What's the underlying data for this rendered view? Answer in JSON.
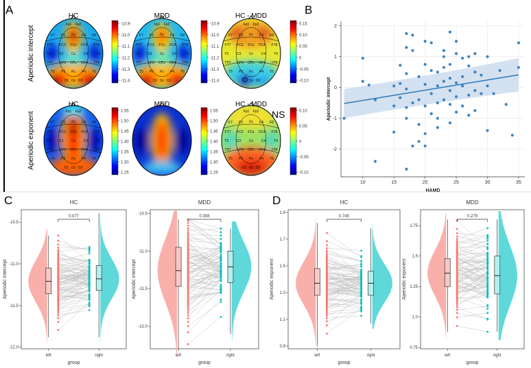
{
  "panels": {
    "A": {
      "label": "A",
      "col_titles": [
        "HC",
        "MDD",
        "HC - MDD"
      ],
      "row_labels": [
        "Aperiodic intercept",
        "Aperiodic exponent"
      ],
      "ns": "NS",
      "electrodes": [
        "Fp1",
        "Fp2",
        "F7",
        "F3",
        "Fz",
        "F4",
        "F8",
        "FC3",
        "FCz",
        "FC4",
        "T3",
        "C3",
        "Cz",
        "C4",
        "T4",
        "CP3",
        "CPz",
        "CP4",
        "T5",
        "P3",
        "Pz",
        "P4",
        "T6",
        "O1",
        "Oz",
        "O2",
        "FT7",
        "FT8",
        "TP7",
        "TP8"
      ],
      "colorbars": [
        {
          "ticks": [
            "-10.9",
            "-11.0",
            "-11.1",
            "-11.2",
            "-11.3",
            "-11.4"
          ]
        },
        {
          "ticks": [
            "-10.9",
            "-11.0",
            "-11.1",
            "-11.2",
            "-11.3",
            "-11.4"
          ]
        },
        {
          "ticks": [
            "0.15",
            "0.10",
            "0.05",
            "0",
            "-0.05",
            "-0.10"
          ]
        },
        {
          "ticks": [
            "1.55",
            "1.50",
            "1.45",
            "1.40",
            "1.35",
            "1.30",
            "1.25"
          ]
        },
        {
          "ticks": [
            "1.55",
            "1.50",
            "1.45",
            "1.40",
            "1.35",
            "1.30",
            "1.25"
          ]
        },
        {
          "ticks": [
            "0.10",
            "0.05",
            "0",
            "-0.05",
            "-0.10"
          ]
        }
      ]
    },
    "B": {
      "label": "B"
    },
    "C": {
      "label": "C"
    },
    "D": {
      "label": "D"
    }
  },
  "colors": {
    "left": "#f8766d",
    "right": "#00bfc4",
    "scatter": "#3b84c4",
    "fit": "#2b78b8",
    "ci": "#c9daec",
    "left_fill": "#f9b0ab",
    "right_fill": "#5fd8da"
  },
  "chart_data": [
    {
      "type": "scatter",
      "panel": "B",
      "xlabel": "HAMD",
      "ylabel": "Aperiodic intercept",
      "xticks": [
        10,
        15,
        20,
        25,
        30,
        35
      ],
      "yticks": [
        2,
        1,
        0,
        -1,
        -2
      ],
      "xlim": [
        6.5,
        36
      ],
      "ylim": [
        -2.9,
        2.15
      ],
      "fit": {
        "x": [
          7,
          35
        ],
        "y": [
          -0.52,
          0.41
        ],
        "ci_upper_at_ends": [
          -0.05,
          0.95
        ],
        "ci_lower_at_ends": [
          -1.0,
          -0.13
        ]
      },
      "points": [
        [
          7,
          -1.0
        ],
        [
          10,
          0.95
        ],
        [
          10,
          0.2
        ],
        [
          11,
          0.08
        ],
        [
          12,
          -0.4
        ],
        [
          12,
          -2.4
        ],
        [
          15,
          0.05
        ],
        [
          15,
          -0.6
        ],
        [
          15,
          -1.45
        ],
        [
          16,
          0.72
        ],
        [
          16,
          0.13
        ],
        [
          16,
          -0.33
        ],
        [
          17,
          1.3
        ],
        [
          17,
          1.75
        ],
        [
          17,
          0.45
        ],
        [
          17,
          -0.05
        ],
        [
          17,
          -0.65
        ],
        [
          17,
          -1.0
        ],
        [
          17,
          -2.65
        ],
        [
          18,
          1.7
        ],
        [
          18,
          1.2
        ],
        [
          18,
          -0.5
        ],
        [
          18,
          -1.9
        ],
        [
          19,
          -0.4
        ],
        [
          19,
          -1.2
        ],
        [
          19,
          -1.75
        ],
        [
          19,
          0.35
        ],
        [
          20,
          1.5
        ],
        [
          20,
          0.1
        ],
        [
          20,
          -0.6
        ],
        [
          20,
          -1.5
        ],
        [
          20,
          -1.9
        ],
        [
          20,
          0.75
        ],
        [
          21,
          1.45
        ],
        [
          21,
          -0.2
        ],
        [
          21,
          -0.85
        ],
        [
          21,
          0.55
        ],
        [
          22,
          0.5
        ],
        [
          22,
          0.05
        ],
        [
          22,
          -0.5
        ],
        [
          22,
          -1.0
        ],
        [
          22,
          -1.3
        ],
        [
          23,
          1.2
        ],
        [
          23,
          0.2
        ],
        [
          23,
          -0.4
        ],
        [
          23,
          1.0
        ],
        [
          23,
          0.65
        ],
        [
          24,
          1.8
        ],
        [
          24,
          0.75
        ],
        [
          24,
          0.3
        ],
        [
          24,
          -0.1
        ],
        [
          24,
          -0.55
        ],
        [
          24,
          -1.15
        ],
        [
          25,
          1.5
        ],
        [
          25,
          0.15
        ],
        [
          25,
          -0.3
        ],
        [
          25,
          -0.8
        ],
        [
          25,
          1.1
        ],
        [
          26,
          0.95
        ],
        [
          26,
          0.35
        ],
        [
          26,
          0.05
        ],
        [
          26,
          -0.6
        ],
        [
          27,
          0.7
        ],
        [
          27,
          -0.25
        ],
        [
          27,
          -0.9
        ],
        [
          27,
          1.0
        ],
        [
          28,
          1.1
        ],
        [
          28,
          0.5
        ],
        [
          28,
          -0.1
        ],
        [
          28,
          -0.75
        ],
        [
          29,
          0.4
        ],
        [
          29,
          -0.2
        ],
        [
          30,
          1.0
        ],
        [
          30,
          0.05
        ],
        [
          30,
          -1.4
        ],
        [
          31,
          -0.2
        ],
        [
          32,
          0.55
        ],
        [
          33,
          -0.55
        ],
        [
          34,
          -1.55
        ],
        [
          35,
          1.45
        ],
        [
          35,
          0.65
        ]
      ]
    },
    {
      "type": "violin-box-paired",
      "panel": "C",
      "title": "HC",
      "xlabel": "group",
      "ylabel": "Aperiodic intercept",
      "categories": [
        "left",
        "right"
      ],
      "yticks": [
        -10.5,
        -11.0,
        -11.5,
        -12.0
      ],
      "ylim": [
        -12.02,
        -10.35
      ],
      "pvalue": "0.077",
      "box": [
        {
          "min": -11.88,
          "q1": -11.36,
          "median": -11.21,
          "q3": -11.05,
          "max": -10.66
        },
        {
          "min": -11.88,
          "q1": -11.32,
          "median": -11.18,
          "q3": -11.02,
          "max": -10.39
        }
      ]
    },
    {
      "type": "violin-box-paired",
      "panel": "C",
      "title": "MDD",
      "xlabel": "group",
      "ylabel": "Aperiodic intercept",
      "categories": [
        "left",
        "right"
      ],
      "yticks": [
        -10.5,
        -11.0,
        -11.5,
        -12.0
      ],
      "ylim": [
        -12.3,
        -10.45
      ],
      "pvalue": "0.308",
      "box": [
        {
          "min": -12.3,
          "q1": -11.47,
          "median": -11.26,
          "q3": -10.95,
          "max": -10.58
        },
        {
          "min": -12.1,
          "q1": -11.42,
          "median": -11.21,
          "q3": -11.0,
          "max": -10.7
        }
      ]
    },
    {
      "type": "violin-box-paired",
      "panel": "D",
      "title": "HC",
      "xlabel": "group",
      "ylabel": "Aperiodic exponent",
      "categories": [
        "left",
        "right"
      ],
      "yticks": [
        0.9,
        1.1,
        1.3,
        1.5,
        1.7,
        1.9
      ],
      "ylim": [
        0.88,
        1.92
      ],
      "pvalue": "0.745",
      "box": [
        {
          "min": 0.9,
          "q1": 1.28,
          "median": 1.37,
          "q3": 1.48,
          "max": 1.82
        },
        {
          "min": 1.07,
          "q1": 1.28,
          "median": 1.37,
          "q3": 1.46,
          "max": 1.78
        }
      ]
    },
    {
      "type": "violin-box-paired",
      "panel": "D",
      "title": "MDD",
      "xlabel": "group",
      "ylabel": "Aperiodic exponent",
      "categories": [
        "left",
        "right"
      ],
      "yticks": [
        0.75,
        1.0,
        1.25,
        1.5,
        1.75
      ],
      "ylim": [
        0.74,
        1.88
      ],
      "pvalue": "0.279",
      "box": [
        {
          "min": 0.88,
          "q1": 1.25,
          "median": 1.36,
          "q3": 1.48,
          "max": 1.8
        },
        {
          "min": 0.88,
          "q1": 1.19,
          "median": 1.34,
          "q3": 1.5,
          "max": 1.8
        }
      ]
    }
  ]
}
